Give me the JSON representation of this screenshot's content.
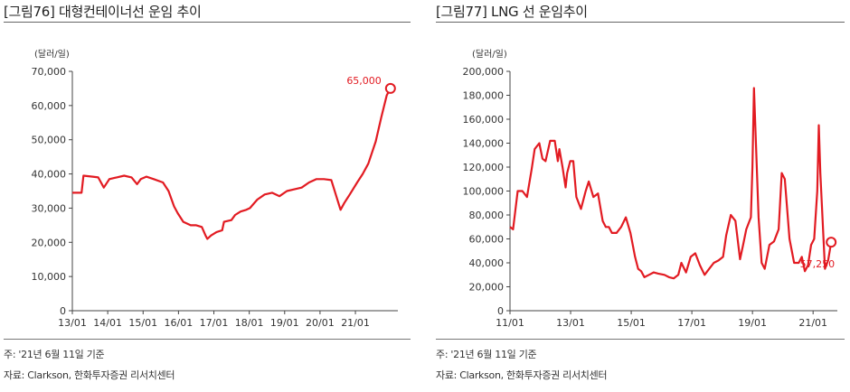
{
  "chart_data": [
    {
      "type": "line",
      "title": "[그림76]  대형컨테이너선 운임 추이",
      "unit": "(달러/일)",
      "ylim": [
        0,
        70000
      ],
      "yticks": [
        "70,000",
        "60,000",
        "50,000",
        "40,000",
        "30,000",
        "20,000",
        "10,000",
        "0"
      ],
      "xlim": [
        0,
        8.8
      ],
      "xtick_labels": [
        "13/01",
        "14/01",
        "15/01",
        "16/01",
        "17/01",
        "18/01",
        "19/01",
        "20/01",
        "21/01"
      ],
      "grid": false,
      "legend": "none",
      "line_color": "#e21b22",
      "series": [
        {
          "x": [
            0,
            0.25,
            0.3,
            0.55,
            0.7,
            0.85,
            1.0,
            1.2,
            1.4,
            1.6,
            1.75,
            1.85,
            2.0,
            2.2,
            2.45,
            2.6,
            2.75,
            2.85,
            3.0,
            3.2,
            3.35,
            3.5,
            3.6,
            3.65,
            3.75,
            3.9,
            4.05,
            4.1,
            4.3,
            4.4,
            4.55,
            4.7,
            4.8,
            5.0,
            5.2,
            5.4,
            5.6,
            5.8,
            6.0,
            6.2,
            6.4,
            6.6,
            6.8,
            7.0,
            7.25,
            7.35,
            7.5,
            7.7,
            7.85,
            8.0,
            8.2,
            8.35,
            8.5,
            8.6
          ],
          "values": [
            34500,
            34500,
            39500,
            39200,
            39000,
            36000,
            38500,
            39000,
            39500,
            39000,
            37000,
            38500,
            39200,
            38500,
            37500,
            35000,
            30500,
            28500,
            26000,
            25000,
            25000,
            24500,
            22000,
            21000,
            22000,
            23000,
            23500,
            26000,
            26500,
            28000,
            29000,
            29500,
            30000,
            32500,
            34000,
            34500,
            33500,
            35000,
            35500,
            36000,
            37500,
            38500,
            38500,
            38200,
            29500,
            31500,
            34000,
            37500,
            40000,
            43000,
            49500,
            56500,
            63000,
            65000
          ]
        }
      ],
      "endpoint_label": "65,000"
    },
    {
      "type": "line",
      "title": "[그림77]  LNG 선 운임추이",
      "unit": "(달러/일)",
      "ylim": [
        0,
        200000
      ],
      "yticks": [
        "200,000",
        "180,000",
        "160,000",
        "140,000",
        "120,000",
        "100,000",
        "80,000",
        "60,000",
        "40,000",
        "20,000",
        "0"
      ],
      "xlim": [
        0,
        10.6
      ],
      "xtick_labels": [
        "11/01",
        "13/01",
        "15/01",
        "17/01",
        "19/01",
        "21/01"
      ],
      "grid": false,
      "legend": "none",
      "line_color": "#e21b22",
      "series": [
        {
          "x": [
            0,
            0.1,
            0.25,
            0.4,
            0.55,
            0.7,
            0.8,
            0.95,
            1.05,
            1.15,
            1.3,
            1.45,
            1.55,
            1.6,
            1.7,
            1.8,
            1.85,
            1.95,
            2.05,
            2.1,
            2.15,
            2.3,
            2.45,
            2.55,
            2.7,
            2.85,
            3.0,
            3.1,
            3.2,
            3.3,
            3.45,
            3.6,
            3.75,
            3.9,
            4.05,
            4.15,
            4.25,
            4.35,
            4.5,
            4.65,
            4.8,
            5.0,
            5.15,
            5.3,
            5.45,
            5.55,
            5.7,
            5.85,
            6.0,
            6.15,
            6.3,
            6.45,
            6.6,
            6.75,
            6.9,
            7.0,
            7.15,
            7.3,
            7.45,
            7.55,
            7.65,
            7.8,
            7.85,
            7.9,
            7.95,
            8.05,
            8.15,
            8.25,
            8.4,
            8.55,
            8.7,
            8.8,
            8.9,
            9.05,
            9.2,
            9.35,
            9.45,
            9.55,
            9.65,
            9.75,
            9.85,
            9.95,
            10.0,
            10.05,
            10.2,
            10.3,
            10.4
          ],
          "values": [
            70000,
            68000,
            100000,
            100000,
            95000,
            118000,
            135000,
            140000,
            127000,
            125000,
            142000,
            142000,
            125000,
            135000,
            120000,
            103000,
            115000,
            125000,
            125000,
            110000,
            95000,
            85000,
            100000,
            108000,
            95000,
            98000,
            75000,
            70000,
            70000,
            65000,
            65000,
            70000,
            78000,
            65000,
            45000,
            35000,
            33000,
            28000,
            30000,
            32000,
            31000,
            30000,
            28000,
            27000,
            30000,
            40000,
            32000,
            45000,
            48000,
            38000,
            30000,
            35000,
            40000,
            42000,
            45000,
            63000,
            80000,
            75000,
            43000,
            55000,
            68000,
            78000,
            120000,
            186000,
            150000,
            78000,
            40000,
            35000,
            55000,
            58000,
            68000,
            115000,
            110000,
            60000,
            40000,
            40000,
            45000,
            33000,
            38000,
            55000,
            60000,
            100000,
            155000,
            115000,
            35000,
            42000,
            57250
          ]
        }
      ],
      "endpoint_label": "57,250"
    }
  ],
  "notes": {
    "left_note1": "주: '21년 6월 11일 기준",
    "left_note2": "자료: Clarkson, 한화투자증권 리서치센터",
    "right_note1": "주: '21년 6월 11일 기준",
    "right_note2": "자료: Clarkson, 한화투자증권 리서치센터"
  }
}
